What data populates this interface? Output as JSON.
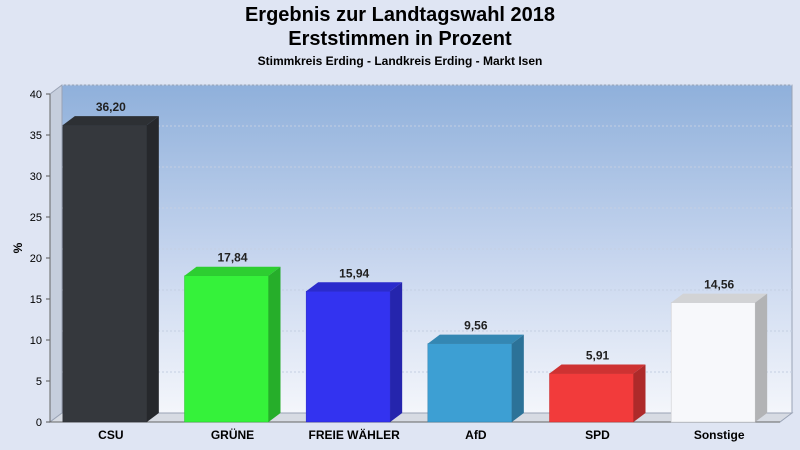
{
  "chart_data": {
    "type": "bar",
    "title": "Ergebnis zur Landtagswahl 2018",
    "title2": "Erststimmen in Prozent",
    "subtitle": "Stimmkreis Erding - Landkreis Erding - Markt Isen",
    "ylabel": "%",
    "ylim": [
      0,
      40
    ],
    "yticks": [
      0,
      5,
      10,
      15,
      20,
      25,
      30,
      35,
      40
    ],
    "grid": true,
    "categories": [
      "CSU",
      "GRÜNE",
      "FREIE WÄHLER",
      "AfD",
      "SPD",
      "Sonstige"
    ],
    "values": [
      36.2,
      17.84,
      15.94,
      9.56,
      5.91,
      14.56
    ],
    "value_labels": [
      "36,20",
      "17,84",
      "15,94",
      "9,56",
      "5,91",
      "14,56"
    ],
    "colors": [
      "#35383d",
      "#35f23a",
      "#3333f0",
      "#3d9fd3",
      "#f23b3b",
      "#f7f8fb"
    ]
  }
}
